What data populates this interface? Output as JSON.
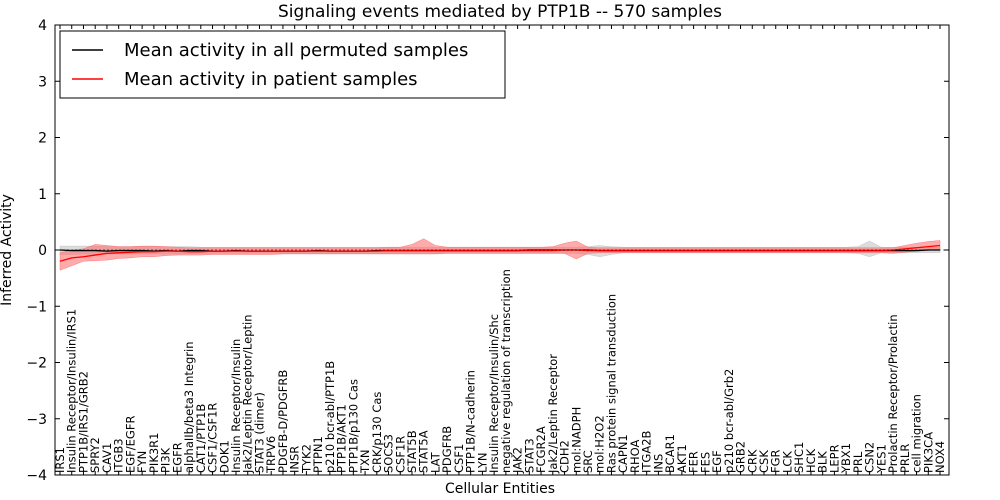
{
  "chart_data": {
    "type": "line",
    "title": "Signaling events mediated by PTP1B -- 570 samples",
    "xlabel": "Cellular Entities",
    "ylabel": "Inferred Activity",
    "ylim": [
      -4,
      4
    ],
    "yticks": [
      "4",
      "3",
      "2",
      "1",
      "0",
      "−1",
      "−2",
      "−3",
      "−4"
    ],
    "ytick_values": [
      4,
      3,
      2,
      1,
      0,
      -1,
      -2,
      -3,
      -4
    ],
    "grid": false,
    "legend_position": "top-left",
    "colors": {
      "permuted_line": "#000000",
      "permuted_band": "#bfbfbf",
      "patient_line": "#ff0000",
      "patient_band": "#ff6666"
    },
    "categories": [
      "IRS1",
      "Insulin Receptor/Insulin/IRS1",
      "PTP1B/IRS1/GRB2",
      "SPRY2",
      "CAV1",
      "ITGB3",
      "EGF/EGFR",
      "FYN",
      "PIK3R1",
      "PI3K",
      "EGFR",
      "alphaIIb/beta3 Integrin",
      "CAT1/PTP1B",
      "CSF1/CSF1R",
      "DOK1",
      "Insulin Receptor/Insulin",
      "Jak2/Leptin Receptor/Leptin",
      "STAT3 (dimer)",
      "TRPV6",
      "PDGFB-D/PDGFRB",
      "INSR",
      "TYK2",
      "PTPN1",
      "p210 bcr-abl/PTP1B",
      "PTP1B/AKT1",
      "PTP1B/p130 Cas",
      "TXN",
      "CRK/p130 Cas",
      "SOCS3",
      "CSF1R",
      "STAT5B",
      "STAT5A",
      "LAT",
      "PDGFRB",
      "CSF1",
      "PTP1B/N-cadherin",
      "LYN",
      "Insulin Receptor/Insulin/Shc",
      "negative regulation of transcription",
      "JAK2",
      "STAT3",
      "FCGR2A",
      "Jak2/Leptin Receptor",
      "CDH2",
      "mol:NADPH",
      "SRC",
      "mol:H2O2",
      "Ras protein signal transduction",
      "CAPN1",
      "RHOA",
      "ITGA2B",
      "INS",
      "BCAR1",
      "AKT1",
      "FER",
      "FES",
      "EGF",
      "p210 bcr-abl/Grb2",
      "GRB2",
      "CRK",
      "CSK",
      "FGR",
      "LCK",
      "SHC1",
      "HCK",
      "BLK",
      "LEPR",
      "YBX1",
      "PRL",
      "CSN2",
      "YES1",
      "Prolactin Receptor/Prolactin",
      "PRLR",
      "cell migration",
      "PIK3CA",
      "NOX4"
    ],
    "series": [
      {
        "name": "Mean activity in all permuted samples",
        "values": [
          0,
          -0.01,
          -0.01,
          -0.01,
          -0.02,
          -0.01,
          -0.01,
          -0.01,
          -0.02,
          -0.01,
          -0.02,
          -0.01,
          -0.01,
          -0.02,
          -0.02,
          -0.01,
          -0.02,
          -0.02,
          -0.02,
          -0.02,
          -0.02,
          -0.02,
          -0.01,
          -0.02,
          -0.02,
          -0.02,
          -0.02,
          -0.01,
          -0.01,
          -0.01,
          -0.01,
          -0.01,
          -0.01,
          -0.01,
          -0.01,
          -0.01,
          -0.01,
          -0.01,
          -0.01,
          -0.01,
          0,
          0,
          0,
          0,
          0,
          0,
          -0.01,
          -0.01,
          -0.01,
          -0.01,
          -0.01,
          -0.01,
          -0.01,
          -0.01,
          -0.01,
          -0.01,
          -0.01,
          -0.01,
          -0.01,
          -0.01,
          -0.01,
          -0.01,
          -0.01,
          -0.01,
          -0.01,
          -0.01,
          -0.01,
          -0.01,
          -0.01,
          -0.01,
          -0.01,
          -0.01,
          -0.01,
          -0.01,
          0,
          0
        ],
        "lower": [
          -0.08,
          -0.08,
          -0.07,
          -0.08,
          -0.07,
          -0.07,
          -0.07,
          -0.07,
          -0.07,
          -0.07,
          -0.07,
          -0.06,
          -0.06,
          -0.06,
          -0.06,
          -0.06,
          -0.06,
          -0.06,
          -0.06,
          -0.06,
          -0.06,
          -0.06,
          -0.06,
          -0.06,
          -0.06,
          -0.06,
          -0.06,
          -0.06,
          -0.06,
          -0.06,
          -0.06,
          -0.06,
          -0.06,
          -0.06,
          -0.06,
          -0.06,
          -0.06,
          -0.06,
          -0.06,
          -0.06,
          -0.06,
          -0.06,
          -0.06,
          -0.06,
          -0.06,
          -0.08,
          -0.12,
          -0.08,
          -0.05,
          -0.05,
          -0.05,
          -0.05,
          -0.05,
          -0.05,
          -0.05,
          -0.05,
          -0.05,
          -0.05,
          -0.05,
          -0.05,
          -0.05,
          -0.05,
          -0.05,
          -0.05,
          -0.05,
          -0.05,
          -0.05,
          -0.05,
          -0.06,
          -0.12,
          -0.05,
          -0.05,
          -0.05,
          -0.05,
          -0.05,
          -0.05
        ],
        "upper": [
          0.07,
          0.07,
          0.07,
          0.07,
          0.06,
          0.06,
          0.06,
          0.06,
          0.06,
          0.06,
          0.06,
          0.06,
          0.05,
          0.05,
          0.05,
          0.05,
          0.05,
          0.05,
          0.05,
          0.05,
          0.05,
          0.05,
          0.05,
          0.05,
          0.05,
          0.05,
          0.05,
          0.05,
          0.05,
          0.05,
          0.05,
          0.05,
          0.05,
          0.05,
          0.05,
          0.05,
          0.05,
          0.05,
          0.05,
          0.05,
          0.05,
          0.05,
          0.05,
          0.05,
          0.05,
          0.06,
          0.08,
          0.06,
          0.05,
          0.05,
          0.05,
          0.05,
          0.05,
          0.05,
          0.05,
          0.05,
          0.05,
          0.05,
          0.05,
          0.05,
          0.05,
          0.05,
          0.05,
          0.05,
          0.05,
          0.05,
          0.05,
          0.05,
          0.06,
          0.16,
          0.05,
          0.05,
          0.05,
          0.05,
          0.05,
          0.05
        ]
      },
      {
        "name": "Mean activity in patient samples",
        "values": [
          -0.2,
          -0.14,
          -0.12,
          -0.09,
          -0.06,
          -0.05,
          -0.04,
          -0.03,
          -0.03,
          -0.02,
          -0.02,
          -0.03,
          -0.03,
          -0.02,
          -0.02,
          -0.02,
          -0.02,
          -0.02,
          -0.02,
          -0.02,
          -0.02,
          -0.02,
          -0.02,
          -0.02,
          -0.02,
          -0.02,
          -0.02,
          -0.02,
          -0.01,
          -0.01,
          -0.01,
          -0.01,
          -0.01,
          -0.01,
          -0.01,
          -0.01,
          -0.01,
          -0.01,
          -0.01,
          -0.01,
          -0.01,
          -0.01,
          -0.01,
          0,
          0,
          -0.01,
          -0.01,
          -0.01,
          -0.01,
          -0.01,
          -0.01,
          -0.01,
          -0.01,
          -0.01,
          -0.01,
          -0.01,
          -0.01,
          -0.01,
          -0.01,
          -0.01,
          -0.01,
          -0.01,
          -0.01,
          -0.01,
          -0.01,
          -0.01,
          -0.01,
          -0.01,
          -0.01,
          -0.01,
          -0.01,
          0,
          0.02,
          0.04,
          0.06,
          0.08
        ],
        "lower": [
          -0.36,
          -0.28,
          -0.2,
          -0.19,
          -0.18,
          -0.15,
          -0.14,
          -0.12,
          -0.12,
          -0.1,
          -0.09,
          -0.09,
          -0.09,
          -0.08,
          -0.08,
          -0.08,
          -0.08,
          -0.08,
          -0.08,
          -0.07,
          -0.07,
          -0.07,
          -0.07,
          -0.07,
          -0.07,
          -0.07,
          -0.07,
          -0.07,
          -0.07,
          -0.07,
          -0.07,
          -0.07,
          -0.07,
          -0.06,
          -0.06,
          -0.06,
          -0.06,
          -0.06,
          -0.06,
          -0.06,
          -0.06,
          -0.06,
          -0.06,
          -0.06,
          -0.16,
          -0.06,
          -0.05,
          -0.05,
          -0.05,
          -0.05,
          -0.05,
          -0.05,
          -0.05,
          -0.05,
          -0.05,
          -0.05,
          -0.05,
          -0.05,
          -0.05,
          -0.05,
          -0.05,
          -0.05,
          -0.05,
          -0.05,
          -0.05,
          -0.05,
          -0.05,
          -0.05,
          -0.05,
          -0.05,
          -0.05,
          -0.06,
          -0.04,
          -0.02,
          -0.01,
          0.02
        ],
        "upper": [
          -0.05,
          0,
          0.02,
          0.1,
          0.08,
          0.06,
          0.06,
          0.07,
          0.07,
          0.06,
          0.05,
          0.04,
          0.04,
          0.04,
          0.04,
          0.04,
          0.04,
          0.04,
          0.04,
          0.04,
          0.04,
          0.04,
          0.04,
          0.04,
          0.04,
          0.04,
          0.04,
          0.04,
          0.05,
          0.05,
          0.1,
          0.2,
          0.08,
          0.05,
          0.05,
          0.05,
          0.05,
          0.05,
          0.05,
          0.05,
          0.05,
          0.05,
          0.06,
          0.12,
          0.16,
          0.05,
          0.04,
          0.04,
          0.04,
          0.04,
          0.04,
          0.04,
          0.04,
          0.04,
          0.04,
          0.04,
          0.04,
          0.04,
          0.04,
          0.04,
          0.04,
          0.04,
          0.04,
          0.04,
          0.04,
          0.04,
          0.04,
          0.04,
          0.04,
          0.04,
          0.04,
          0.04,
          0.08,
          0.12,
          0.15,
          0.17
        ]
      }
    ]
  }
}
